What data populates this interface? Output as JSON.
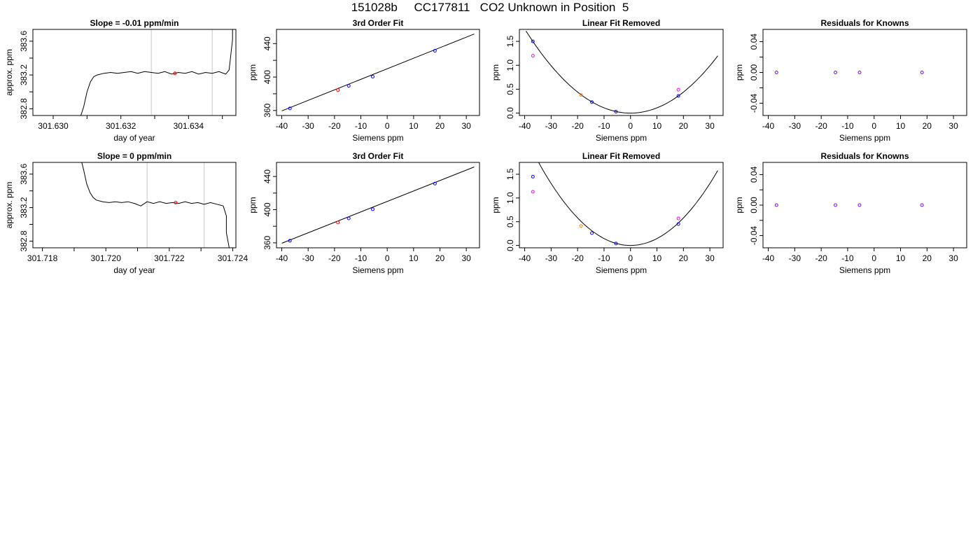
{
  "page": {
    "title": "151028b     CC177811   CO2 Unknown in Position  5"
  },
  "colors": {
    "axis": "#000000",
    "line": "#000000",
    "vline": "#c8c8c8",
    "blue": "#0000ff",
    "red": "#ff0000",
    "magenta": "#ff00ff",
    "purple": "#7f00ff",
    "orange": "#ff8000"
  },
  "chart_data": [
    {
      "type": "line",
      "title": "Slope =  -0.01  ppm/min",
      "xlabel": "day of year",
      "ylabel": "approx. ppm",
      "xlim": [
        301.6294,
        301.6354
      ],
      "ylim": [
        382.72,
        383.74
      ],
      "xticks": [
        301.63,
        301.631,
        301.632,
        301.633,
        301.634,
        301.635
      ],
      "xticklabels": [
        "301.630",
        "",
        "301.632",
        "",
        "301.634",
        ""
      ],
      "yticks": [
        382.8,
        383.0,
        383.2,
        383.4,
        383.6
      ],
      "yticklabels": [
        "382.8",
        "",
        "383.2",
        "",
        "383.6"
      ],
      "vlines": [
        301.6329,
        301.6347
      ],
      "trace": [
        [
          301.6308,
          382.7
        ],
        [
          301.6309,
          382.82
        ],
        [
          301.631,
          383.0
        ],
        [
          301.6311,
          383.12
        ],
        [
          301.6312,
          383.18
        ],
        [
          301.6313,
          383.2
        ],
        [
          301.6315,
          383.22
        ],
        [
          301.6317,
          383.23
        ],
        [
          301.6319,
          383.22
        ],
        [
          301.6321,
          383.23
        ],
        [
          301.6323,
          383.24
        ],
        [
          301.6325,
          383.22
        ],
        [
          301.6327,
          383.24
        ],
        [
          301.6329,
          383.23
        ],
        [
          301.6331,
          383.22
        ],
        [
          301.6333,
          383.24
        ],
        [
          301.6335,
          383.21
        ],
        [
          301.6337,
          383.23
        ],
        [
          301.6339,
          383.22
        ],
        [
          301.6341,
          383.24
        ],
        [
          301.6343,
          383.21
        ],
        [
          301.6345,
          383.23
        ],
        [
          301.6347,
          383.22
        ],
        [
          301.6349,
          383.24
        ],
        [
          301.6351,
          383.21
        ],
        [
          301.6352,
          383.26
        ],
        [
          301.6353,
          383.62
        ],
        [
          301.6353,
          383.8
        ]
      ],
      "markers": [
        {
          "x": 301.6336,
          "y": 383.22,
          "color": "red"
        }
      ]
    },
    {
      "type": "scatter",
      "title": "3rd Order Fit",
      "xlabel": "Siemens ppm",
      "ylabel": "ppm",
      "xlim": [
        -42,
        35
      ],
      "ylim": [
        354,
        457
      ],
      "xticks": [
        -40,
        -30,
        -20,
        -10,
        0,
        10,
        20,
        30
      ],
      "xticklabels": [
        "-40",
        "-30",
        "-20",
        "-10",
        "0",
        "10",
        "20",
        "30"
      ],
      "yticks": [
        360,
        380,
        400,
        420,
        440
      ],
      "yticklabels": [
        "360",
        "",
        "400",
        "",
        "440"
      ],
      "curve": {
        "kind": "linear",
        "x": [
          -40,
          33
        ],
        "y": [
          359.5,
          451.5
        ]
      },
      "points": [
        {
          "x": -36.9,
          "y": 362.5,
          "color": "blue"
        },
        {
          "x": -18.7,
          "y": 384.5,
          "color": "red"
        },
        {
          "x": -14.6,
          "y": 389.5,
          "color": "blue"
        },
        {
          "x": -5.5,
          "y": 400.5,
          "color": "blue"
        },
        {
          "x": 18.1,
          "y": 431.5,
          "color": "blue"
        }
      ]
    },
    {
      "type": "scatter",
      "title": "Linear Fit Removed",
      "xlabel": "Siemens ppm",
      "ylabel": "ppm",
      "xlim": [
        -42,
        35
      ],
      "ylim": [
        -0.05,
        1.75
      ],
      "xticks": [
        -40,
        -30,
        -20,
        -10,
        0,
        10,
        20,
        30
      ],
      "xticklabels": [
        "-40",
        "-30",
        "-20",
        "-10",
        "0",
        "10",
        "20",
        "30"
      ],
      "yticks": [
        0.0,
        0.5,
        1.0,
        1.5
      ],
      "yticklabels": [
        "0.0",
        "0.5",
        "1.0",
        "1.5"
      ],
      "curve": {
        "kind": "quadratic",
        "a": 0.0011,
        "b": 0.0,
        "c": 0.0,
        "x0": -39.5,
        "x1": 33
      },
      "points": [
        {
          "x": -36.9,
          "y": 1.5,
          "color": "blue"
        },
        {
          "x": -36.9,
          "y": 1.2,
          "color": "magenta"
        },
        {
          "x": -18.7,
          "y": 0.38,
          "color": "orange"
        },
        {
          "x": -14.6,
          "y": 0.23,
          "color": "blue"
        },
        {
          "x": -5.5,
          "y": 0.03,
          "color": "blue"
        },
        {
          "x": 18.1,
          "y": 0.36,
          "color": "blue"
        },
        {
          "x": 18.1,
          "y": 0.49,
          "color": "magenta"
        }
      ]
    },
    {
      "type": "scatter",
      "title": "Residuals for Knowns",
      "xlabel": "Siemens ppm",
      "ylabel": "ppm",
      "xlim": [
        -42,
        35
      ],
      "ylim": [
        -0.056,
        0.056
      ],
      "xticks": [
        -40,
        -30,
        -20,
        -10,
        0,
        10,
        20,
        30
      ],
      "xticklabels": [
        "-40",
        "-30",
        "-20",
        "-10",
        "0",
        "10",
        "20",
        "30"
      ],
      "yticks": [
        -0.04,
        -0.02,
        0.0,
        0.02,
        0.04
      ],
      "yticklabels": [
        "-0.04",
        "",
        "0.00",
        "",
        "0.04"
      ],
      "points": [
        {
          "x": -36.9,
          "y": 0.0,
          "color": "purple"
        },
        {
          "x": -14.6,
          "y": 0.0,
          "color": "purple"
        },
        {
          "x": -5.5,
          "y": 0.0,
          "color": "purple"
        },
        {
          "x": 18.1,
          "y": 0.0,
          "color": "purple"
        }
      ]
    },
    {
      "type": "line",
      "title": "Slope =  0  ppm/min",
      "xlabel": "day of year",
      "ylabel": "approx. ppm",
      "xlim": [
        301.7177,
        301.7241
      ],
      "ylim": [
        382.72,
        383.74
      ],
      "xticks": [
        301.718,
        301.719,
        301.72,
        301.721,
        301.722,
        301.723,
        301.724
      ],
      "xticklabels": [
        "301.718",
        "",
        "301.720",
        "",
        "301.722",
        "",
        "301.724"
      ],
      "yticks": [
        382.8,
        383.0,
        383.2,
        383.4,
        383.6
      ],
      "yticklabels": [
        "382.8",
        "",
        "383.2",
        "",
        "383.6"
      ],
      "vlines": [
        301.7213,
        301.7231
      ],
      "trace": [
        [
          301.7192,
          383.8
        ],
        [
          301.7193,
          383.65
        ],
        [
          301.7194,
          383.48
        ],
        [
          301.7195,
          383.38
        ],
        [
          301.7196,
          383.32
        ],
        [
          301.7197,
          383.29
        ],
        [
          301.7199,
          383.27
        ],
        [
          301.7201,
          383.26
        ],
        [
          301.7203,
          383.27
        ],
        [
          301.7205,
          383.26
        ],
        [
          301.7207,
          383.27
        ],
        [
          301.7209,
          383.25
        ],
        [
          301.7211,
          383.22
        ],
        [
          301.7213,
          383.27
        ],
        [
          301.7215,
          383.25
        ],
        [
          301.7217,
          383.27
        ],
        [
          301.7219,
          383.25
        ],
        [
          301.7221,
          383.26
        ],
        [
          301.7223,
          383.25
        ],
        [
          301.7225,
          383.27
        ],
        [
          301.7227,
          383.25
        ],
        [
          301.7229,
          383.26
        ],
        [
          301.7231,
          383.24
        ],
        [
          301.7233,
          383.26
        ],
        [
          301.7235,
          383.24
        ],
        [
          301.7237,
          383.22
        ],
        [
          301.7238,
          383.1
        ],
        [
          301.7238,
          382.9
        ],
        [
          301.7239,
          382.7
        ]
      ],
      "markers": [
        {
          "x": 301.7222,
          "y": 383.26,
          "color": "red"
        }
      ]
    },
    {
      "type": "scatter",
      "title": "3rd Order Fit",
      "xlabel": "Siemens ppm",
      "ylabel": "ppm",
      "xlim": [
        -42,
        35
      ],
      "ylim": [
        354,
        457
      ],
      "xticks": [
        -40,
        -30,
        -20,
        -10,
        0,
        10,
        20,
        30
      ],
      "xticklabels": [
        "-40",
        "-30",
        "-20",
        "-10",
        "0",
        "10",
        "20",
        "30"
      ],
      "yticks": [
        360,
        380,
        400,
        420,
        440
      ],
      "yticklabels": [
        "360",
        "",
        "400",
        "",
        "440"
      ],
      "curve": {
        "kind": "linear",
        "x": [
          -40,
          33
        ],
        "y": [
          359.5,
          451.5
        ]
      },
      "points": [
        {
          "x": -36.9,
          "y": 362.5,
          "color": "blue"
        },
        {
          "x": -18.7,
          "y": 384.5,
          "color": "red"
        },
        {
          "x": -14.6,
          "y": 389.5,
          "color": "blue"
        },
        {
          "x": -5.5,
          "y": 400.5,
          "color": "blue"
        },
        {
          "x": 18.1,
          "y": 431.5,
          "color": "blue"
        }
      ]
    },
    {
      "type": "scatter",
      "title": "Linear Fit Removed",
      "xlabel": "Siemens ppm",
      "ylabel": "ppm",
      "xlim": [
        -42,
        35
      ],
      "ylim": [
        -0.05,
        1.75
      ],
      "xticks": [
        -40,
        -30,
        -20,
        -10,
        0,
        10,
        20,
        30
      ],
      "xticklabels": [
        "-40",
        "-30",
        "-20",
        "-10",
        "0",
        "10",
        "20",
        "30"
      ],
      "yticks": [
        0.0,
        0.5,
        1.0,
        1.5
      ],
      "yticklabels": [
        "0.0",
        "0.5",
        "1.0",
        "1.5"
      ],
      "curve": {
        "kind": "quadratic",
        "a": 0.00145,
        "b": 0.0,
        "c": 0.0,
        "x0": -39.5,
        "x1": 33
      },
      "points": [
        {
          "x": -36.9,
          "y": 1.45,
          "color": "blue"
        },
        {
          "x": -36.9,
          "y": 1.13,
          "color": "magenta"
        },
        {
          "x": -18.7,
          "y": 0.41,
          "color": "orange"
        },
        {
          "x": -14.6,
          "y": 0.26,
          "color": "blue"
        },
        {
          "x": -5.5,
          "y": 0.04,
          "color": "blue"
        },
        {
          "x": 18.1,
          "y": 0.45,
          "color": "blue"
        },
        {
          "x": 18.1,
          "y": 0.57,
          "color": "magenta"
        }
      ]
    },
    {
      "type": "scatter",
      "title": "Residuals for Knowns",
      "xlabel": "Siemens ppm",
      "ylabel": "ppm",
      "xlim": [
        -42,
        35
      ],
      "ylim": [
        -0.056,
        0.056
      ],
      "xticks": [
        -40,
        -30,
        -20,
        -10,
        0,
        10,
        20,
        30
      ],
      "xticklabels": [
        "-40",
        "-30",
        "-20",
        "-10",
        "0",
        "10",
        "20",
        "30"
      ],
      "yticks": [
        -0.04,
        -0.02,
        0.0,
        0.02,
        0.04
      ],
      "yticklabels": [
        "-0.04",
        "",
        "0.00",
        "",
        "0.04"
      ],
      "points": [
        {
          "x": -36.9,
          "y": 0.0,
          "color": "purple"
        },
        {
          "x": -14.6,
          "y": 0.0,
          "color": "purple"
        },
        {
          "x": -5.5,
          "y": 0.0,
          "color": "purple"
        },
        {
          "x": 18.1,
          "y": 0.0,
          "color": "purple"
        }
      ]
    }
  ]
}
